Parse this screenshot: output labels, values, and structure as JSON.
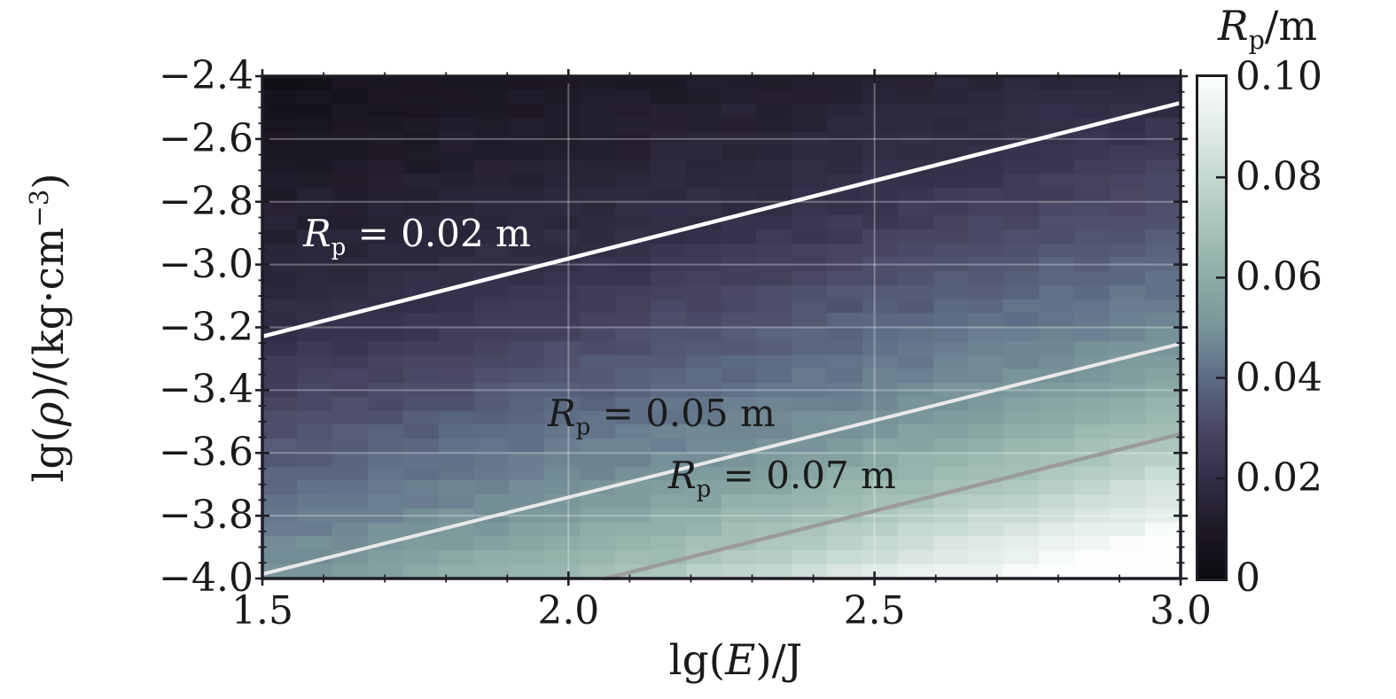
{
  "chart_data": {
    "type": "heatmap",
    "title": "",
    "xlabel_parts": {
      "pre": "lg(",
      "var": "E",
      "post": ")/J"
    },
    "ylabel_parts": {
      "pre": "lg(",
      "var": "ρ",
      "post": ")/(kg·cm",
      "sup": "−3",
      "end": ")"
    },
    "x_range": [
      1.5,
      3.0
    ],
    "y_range": [
      -4.0,
      -2.4
    ],
    "x_ticks": [
      1.5,
      2.0,
      2.5,
      3.0
    ],
    "x_ticklabels": [
      "1.5",
      "2.0",
      "2.5",
      "3.0"
    ],
    "x_minor_step": 0.1,
    "y_ticks": [
      -2.4,
      -2.6,
      -2.8,
      -3.0,
      -3.2,
      -3.4,
      -3.6,
      -3.8,
      -4.0
    ],
    "y_ticklabels": [
      "−2.4",
      "−2.6",
      "−2.8",
      "−3.0",
      "−3.2",
      "−3.4",
      "−3.6",
      "−3.8",
      "−4.0"
    ],
    "y_minor_step": 0.05,
    "grid": {
      "vertical_at": [
        2.0,
        2.5
      ],
      "horizontal_at": [
        -2.6,
        -2.8,
        -3.0,
        -3.2,
        -3.4,
        -3.6,
        -3.8
      ],
      "color": "#ffffff",
      "opacity": 0.3,
      "width": 2
    },
    "colorbar": {
      "title_parts": {
        "var": "R",
        "sub": "p",
        "post": "/m"
      },
      "range": [
        0,
        0.1
      ],
      "ticks": [
        0,
        0.02,
        0.04,
        0.06,
        0.08,
        0.1
      ],
      "ticklabels": [
        "0",
        "0.02",
        "0.04",
        "0.06",
        "0.08",
        "0.10"
      ]
    },
    "colormap_anchors": [
      {
        "value": 0.0,
        "color": "#0c0a10"
      },
      {
        "value": 0.01,
        "color": "#1e1926"
      },
      {
        "value": 0.02,
        "color": "#342e47"
      },
      {
        "value": 0.03,
        "color": "#494763"
      },
      {
        "value": 0.04,
        "color": "#5d6b85"
      },
      {
        "value": 0.05,
        "color": "#78949a"
      },
      {
        "value": 0.06,
        "color": "#8dada6"
      },
      {
        "value": 0.07,
        "color": "#a7c2ba"
      },
      {
        "value": 0.08,
        "color": "#c5d9d0"
      },
      {
        "value": 0.09,
        "color": "#e2ede7"
      },
      {
        "value": 0.1,
        "color": "#fcfefd"
      }
    ],
    "field": {
      "description": "Rp/m value grid; Rp grows toward high lg(E) and low lg(rho)",
      "s_coeff": 0.462,
      "s_anchors": [
        0,
        0.517,
        0.993,
        1.174,
        1.462
      ],
      "v_anchors": [
        0.004,
        0.02,
        0.05,
        0.07,
        0.112
      ],
      "grid_cols": 26,
      "grid_rows": 36,
      "noise_amp": 0.0018
    },
    "contours": [
      {
        "value_m": 0.02,
        "label_parts": {
          "var": "R",
          "sub": "p",
          "rest": " = 0.02 m"
        },
        "color": "#ffffff",
        "width": 4.5,
        "p1": {
          "lgE": 1.5,
          "lgrho": -3.229
        },
        "p2": {
          "lgE": 3.0,
          "lgrho": -2.485
        }
      },
      {
        "value_m": 0.05,
        "label_parts": {
          "var": "R",
          "sub": "p",
          "rest": " = 0.05 m"
        },
        "color": "#e9e9e9",
        "width": 4,
        "p1": {
          "lgE": 1.5,
          "lgrho": -3.986
        },
        "p2": {
          "lgE": 3.0,
          "lgrho": -3.252
        }
      },
      {
        "value_m": 0.07,
        "label_parts": {
          "var": "R",
          "sub": "p",
          "rest": " = 0.07 m"
        },
        "color": "#9b9b9b",
        "width": 4.5,
        "p1": {
          "lgE": 2.06,
          "lgrho": -4.0
        },
        "p2": {
          "lgE": 3.0,
          "lgrho": -3.54
        }
      }
    ],
    "frame_color": "#1f1d24",
    "tick_color": "#1f1d24"
  }
}
